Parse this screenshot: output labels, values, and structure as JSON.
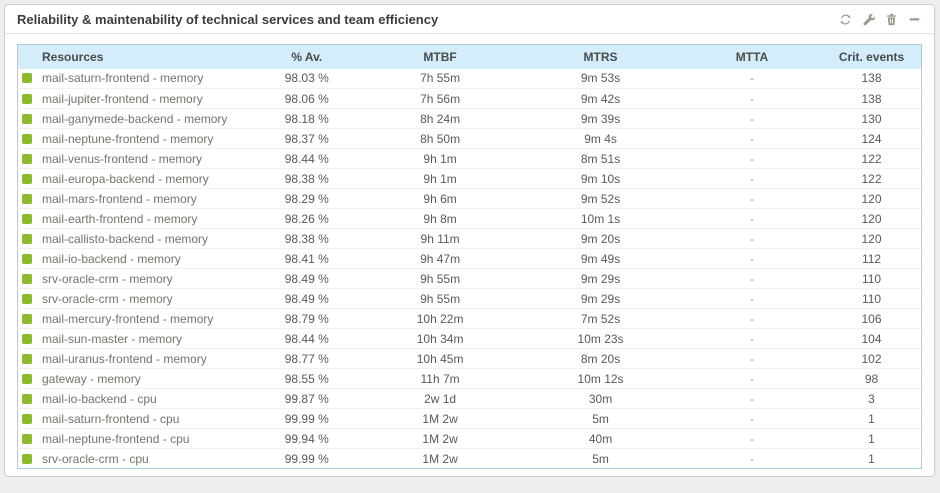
{
  "widget": {
    "title": "Reliability & maintenability of technical services and team efficiency"
  },
  "toolbar": {
    "icons": [
      {
        "name": "refresh-icon"
      },
      {
        "name": "wrench-icon"
      },
      {
        "name": "trash-icon"
      },
      {
        "name": "collapse-icon"
      }
    ]
  },
  "colors": {
    "status_ok": "#8bbb2c",
    "table_header_bg": "#d4edfa",
    "table_border": "#a6cde4",
    "widget_border": "#cbcdcd",
    "icon": "#9e988c",
    "page_bg": "#edefee"
  },
  "table": {
    "columns": [
      {
        "key": "resources",
        "label": "Resources"
      },
      {
        "key": "availability",
        "label": "% Av."
      },
      {
        "key": "mtbf",
        "label": "MTBF"
      },
      {
        "key": "mtrs",
        "label": "MTRS"
      },
      {
        "key": "mtta",
        "label": "MTTA"
      },
      {
        "key": "crit",
        "label": "Crit. events"
      }
    ],
    "rows": [
      {
        "status": "ok",
        "resource": "mail-saturn-frontend - memory",
        "availability": "98.03 %",
        "mtbf": "7h 55m",
        "mtrs": "9m 53s",
        "mtta": "-",
        "crit_events": "138"
      },
      {
        "status": "ok",
        "resource": "mail-jupiter-frontend - memory",
        "availability": "98.06 %",
        "mtbf": "7h 56m",
        "mtrs": "9m 42s",
        "mtta": "-",
        "crit_events": "138"
      },
      {
        "status": "ok",
        "resource": "mail-ganymede-backend - memory",
        "availability": "98.18 %",
        "mtbf": "8h 24m",
        "mtrs": "9m 39s",
        "mtta": "-",
        "crit_events": "130"
      },
      {
        "status": "ok",
        "resource": "mail-neptune-frontend - memory",
        "availability": "98.37 %",
        "mtbf": "8h 50m",
        "mtrs": "9m 4s",
        "mtta": "-",
        "crit_events": "124"
      },
      {
        "status": "ok",
        "resource": "mail-venus-frontend - memory",
        "availability": "98.44 %",
        "mtbf": "9h 1m",
        "mtrs": "8m 51s",
        "mtta": "-",
        "crit_events": "122"
      },
      {
        "status": "ok",
        "resource": "mail-europa-backend - memory",
        "availability": "98.38 %",
        "mtbf": "9h 1m",
        "mtrs": "9m 10s",
        "mtta": "-",
        "crit_events": "122"
      },
      {
        "status": "ok",
        "resource": "mail-mars-frontend - memory",
        "availability": "98.29 %",
        "mtbf": "9h 6m",
        "mtrs": "9m 52s",
        "mtta": "-",
        "crit_events": "120"
      },
      {
        "status": "ok",
        "resource": "mail-earth-frontend - memory",
        "availability": "98.26 %",
        "mtbf": "9h 8m",
        "mtrs": "10m 1s",
        "mtta": "-",
        "crit_events": "120"
      },
      {
        "status": "ok",
        "resource": "mail-callisto-backend - memory",
        "availability": "98.38 %",
        "mtbf": "9h 11m",
        "mtrs": "9m 20s",
        "mtta": "-",
        "crit_events": "120"
      },
      {
        "status": "ok",
        "resource": "mail-io-backend - memory",
        "availability": "98.41 %",
        "mtbf": "9h 47m",
        "mtrs": "9m 49s",
        "mtta": "-",
        "crit_events": "112"
      },
      {
        "status": "ok",
        "resource": "srv-oracle-crm - memory",
        "availability": "98.49 %",
        "mtbf": "9h 55m",
        "mtrs": "9m 29s",
        "mtta": "-",
        "crit_events": "110"
      },
      {
        "status": "ok",
        "resource": "srv-oracle-crm - memory",
        "availability": "98.49 %",
        "mtbf": "9h 55m",
        "mtrs": "9m 29s",
        "mtta": "-",
        "crit_events": "110"
      },
      {
        "status": "ok",
        "resource": "mail-mercury-frontend - memory",
        "availability": "98.79 %",
        "mtbf": "10h 22m",
        "mtrs": "7m 52s",
        "mtta": "-",
        "crit_events": "106"
      },
      {
        "status": "ok",
        "resource": "mail-sun-master - memory",
        "availability": "98.44 %",
        "mtbf": "10h 34m",
        "mtrs": "10m 23s",
        "mtta": "-",
        "crit_events": "104"
      },
      {
        "status": "ok",
        "resource": "mail-uranus-frontend - memory",
        "availability": "98.77 %",
        "mtbf": "10h 45m",
        "mtrs": "8m 20s",
        "mtta": "-",
        "crit_events": "102"
      },
      {
        "status": "ok",
        "resource": "gateway - memory",
        "availability": "98.55 %",
        "mtbf": "11h 7m",
        "mtrs": "10m 12s",
        "mtta": "-",
        "crit_events": "98"
      },
      {
        "status": "ok",
        "resource": "mail-io-backend - cpu",
        "availability": "99.87 %",
        "mtbf": "2w 1d",
        "mtrs": "30m",
        "mtta": "-",
        "crit_events": "3"
      },
      {
        "status": "ok",
        "resource": "mail-saturn-frontend - cpu",
        "availability": "99.99 %",
        "mtbf": "1M 2w",
        "mtrs": "5m",
        "mtta": "-",
        "crit_events": "1"
      },
      {
        "status": "ok",
        "resource": "mail-neptune-frontend - cpu",
        "availability": "99.94 %",
        "mtbf": "1M 2w",
        "mtrs": "40m",
        "mtta": "-",
        "crit_events": "1"
      },
      {
        "status": "ok",
        "resource": "srv-oracle-crm - cpu",
        "availability": "99.99 %",
        "mtbf": "1M 2w",
        "mtrs": "5m",
        "mtta": "-",
        "crit_events": "1"
      }
    ]
  }
}
